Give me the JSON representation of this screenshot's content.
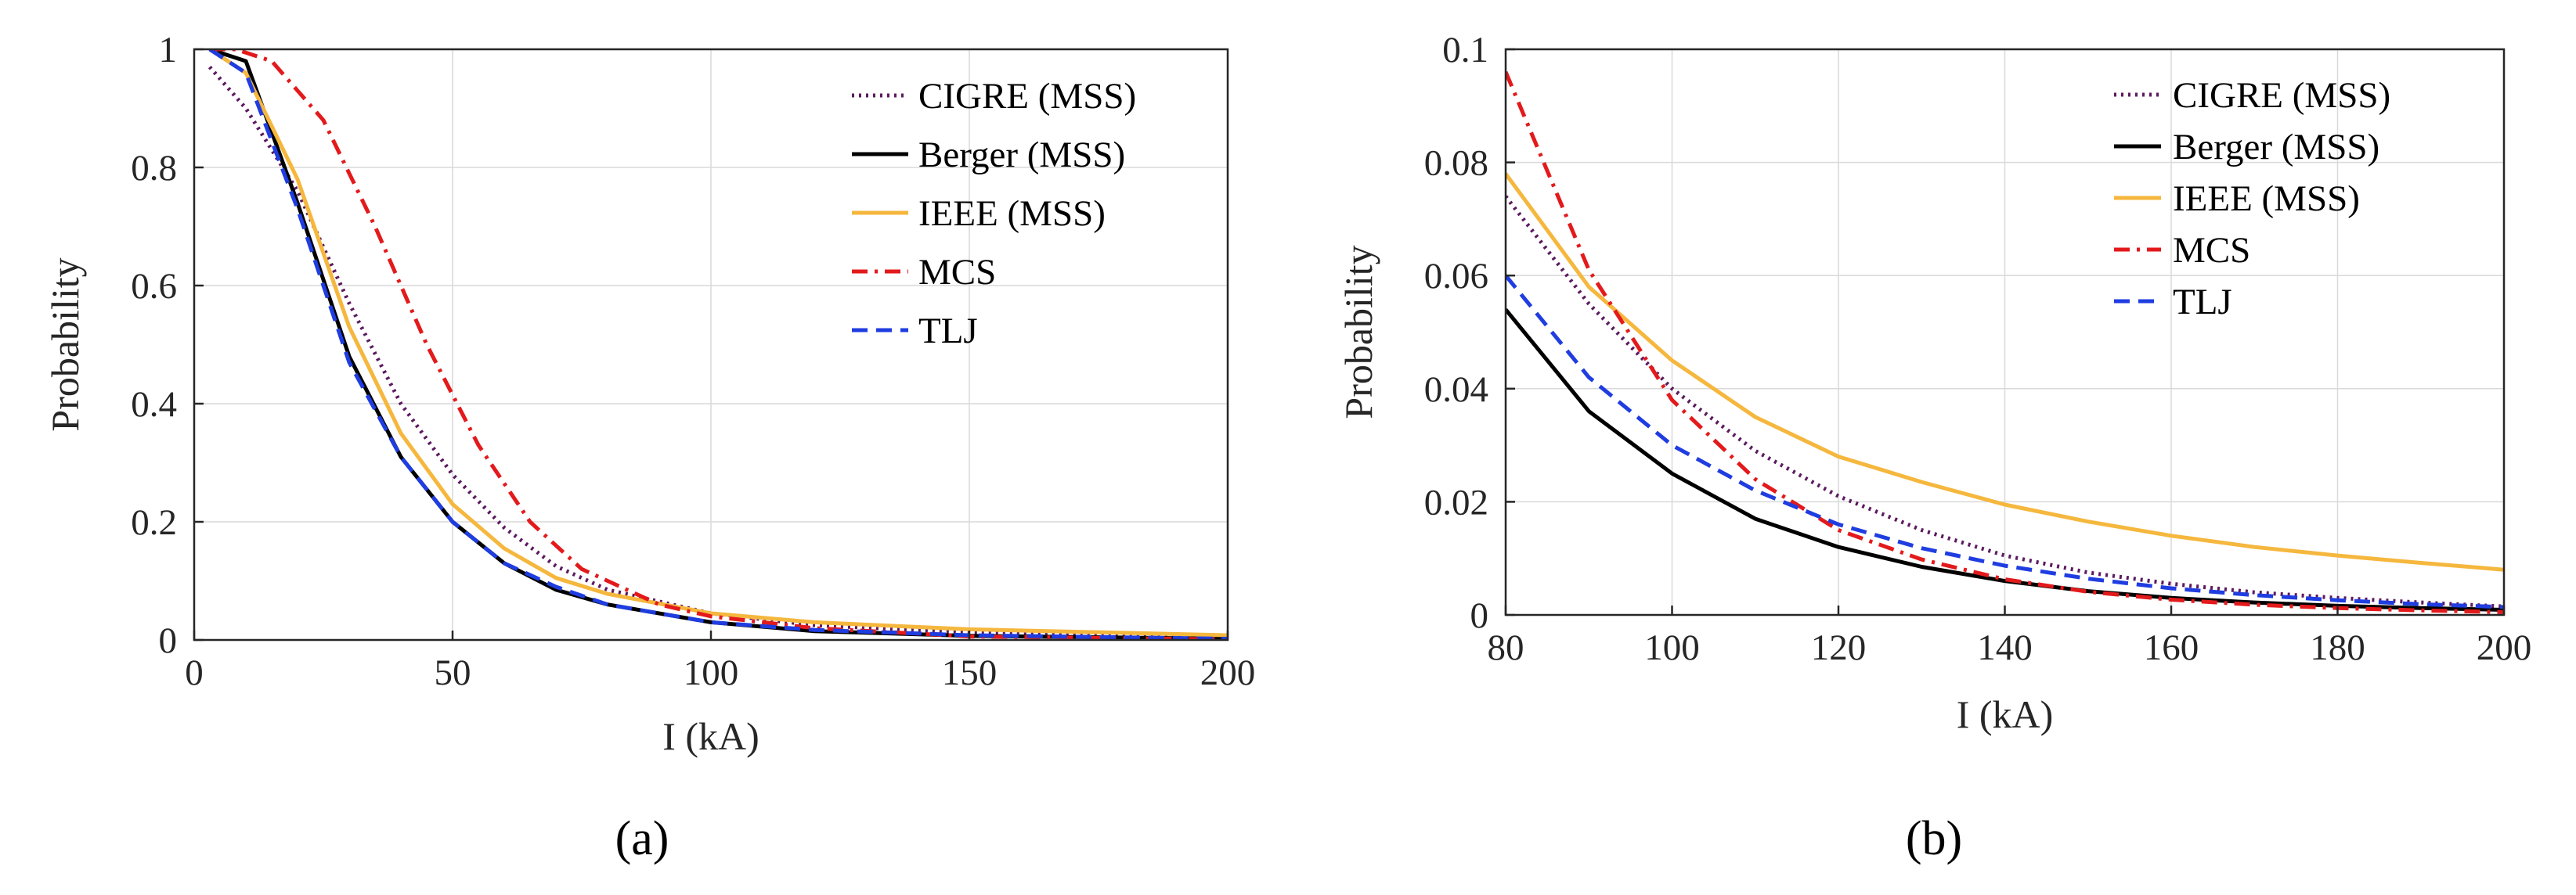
{
  "colors": {
    "cigre": "#5b1a5f",
    "berger": "#000000",
    "ieee": "#f5b73d",
    "mcs": "#e31a1c",
    "tlj": "#1f3de0",
    "grid": "#d9d9d9",
    "axis": "#262626"
  },
  "chart_data": [
    {
      "type": "line",
      "panel_label": "(a)",
      "xlabel": "I (kA)",
      "ylabel": "Probability",
      "xlim": [
        0,
        200
      ],
      "ylim": [
        0,
        1
      ],
      "xticks": [
        0,
        50,
        100,
        150,
        200
      ],
      "yticks": [
        0,
        0.2,
        0.4,
        0.6,
        0.8,
        1
      ],
      "xtick_labels": [
        "0",
        "50",
        "100",
        "150",
        "200"
      ],
      "ytick_labels": [
        "0",
        "0.2",
        "0.4",
        "0.6",
        "0.8",
        "1"
      ],
      "grid": true,
      "legend_position": "top-right",
      "series": [
        {
          "name": "CIGRE (MSS)",
          "style": "dotted",
          "color_key": "cigre",
          "x": [
            3,
            10,
            20,
            30,
            40,
            50,
            60,
            70,
            80,
            100,
            120,
            150,
            200
          ],
          "y": [
            0.97,
            0.9,
            0.76,
            0.57,
            0.4,
            0.28,
            0.19,
            0.125,
            0.085,
            0.045,
            0.025,
            0.012,
            0.003
          ]
        },
        {
          "name": "Berger (MSS)",
          "style": "solid",
          "color_key": "berger",
          "x": [
            3,
            10,
            20,
            30,
            40,
            50,
            60,
            70,
            80,
            100,
            120,
            150,
            200
          ],
          "y": [
            1.0,
            0.98,
            0.74,
            0.48,
            0.31,
            0.2,
            0.13,
            0.085,
            0.06,
            0.03,
            0.015,
            0.007,
            0.002
          ]
        },
        {
          "name": "IEEE (MSS)",
          "style": "solid",
          "color_key": "ieee",
          "x": [
            3,
            10,
            20,
            30,
            40,
            50,
            60,
            70,
            80,
            100,
            120,
            150,
            200
          ],
          "y": [
            1.0,
            0.96,
            0.78,
            0.53,
            0.35,
            0.23,
            0.155,
            0.105,
            0.078,
            0.045,
            0.03,
            0.018,
            0.008
          ]
        },
        {
          "name": "MCS",
          "style": "dashdot",
          "color_key": "mcs",
          "x": [
            3,
            8,
            15,
            25,
            35,
            45,
            55,
            65,
            75,
            90,
            100,
            120,
            150,
            200
          ],
          "y": [
            1.0,
            1.0,
            0.98,
            0.88,
            0.7,
            0.5,
            0.33,
            0.2,
            0.12,
            0.06,
            0.04,
            0.02,
            0.006,
            0.001
          ]
        },
        {
          "name": "TLJ",
          "style": "dashed",
          "color_key": "tlj",
          "x": [
            3,
            10,
            20,
            30,
            40,
            50,
            60,
            70,
            80,
            100,
            120,
            150,
            200
          ],
          "y": [
            1.0,
            0.96,
            0.73,
            0.47,
            0.31,
            0.2,
            0.13,
            0.09,
            0.06,
            0.03,
            0.017,
            0.008,
            0.002
          ]
        }
      ]
    },
    {
      "type": "line",
      "panel_label": "(b)",
      "xlabel": "I (kA)",
      "ylabel": "Probability",
      "xlim": [
        80,
        200
      ],
      "ylim": [
        0,
        0.1
      ],
      "xticks": [
        80,
        100,
        120,
        140,
        160,
        180,
        200
      ],
      "yticks": [
        0,
        0.02,
        0.04,
        0.06,
        0.08,
        0.1
      ],
      "xtick_labels": [
        "80",
        "100",
        "120",
        "140",
        "160",
        "180",
        "200"
      ],
      "ytick_labels": [
        "0",
        "0.02",
        "0.04",
        "0.06",
        "0.08",
        "0.1"
      ],
      "grid": true,
      "legend_position": "top-right",
      "series": [
        {
          "name": "CIGRE (MSS)",
          "style": "dotted",
          "color_key": "cigre",
          "x": [
            80,
            90,
            100,
            110,
            120,
            130,
            140,
            150,
            160,
            170,
            180,
            190,
            200
          ],
          "y": [
            0.074,
            0.055,
            0.04,
            0.029,
            0.021,
            0.015,
            0.0105,
            0.0075,
            0.0055,
            0.004,
            0.003,
            0.0022,
            0.0015
          ]
        },
        {
          "name": "Berger (MSS)",
          "style": "solid",
          "color_key": "berger",
          "x": [
            80,
            90,
            100,
            110,
            120,
            130,
            140,
            150,
            160,
            170,
            180,
            190,
            200
          ],
          "y": [
            0.054,
            0.036,
            0.025,
            0.017,
            0.012,
            0.0085,
            0.006,
            0.0042,
            0.003,
            0.0022,
            0.0016,
            0.0012,
            0.0009
          ]
        },
        {
          "name": "IEEE (MSS)",
          "style": "solid",
          "color_key": "ieee",
          "x": [
            80,
            90,
            100,
            110,
            120,
            130,
            140,
            150,
            160,
            170,
            180,
            190,
            200
          ],
          "y": [
            0.078,
            0.058,
            0.045,
            0.035,
            0.028,
            0.0235,
            0.0195,
            0.0165,
            0.014,
            0.012,
            0.0105,
            0.0092,
            0.008
          ]
        },
        {
          "name": "MCS",
          "style": "dashdot",
          "color_key": "mcs",
          "x": [
            80,
            90,
            100,
            110,
            120,
            130,
            140,
            150,
            160,
            170,
            180,
            190,
            200
          ],
          "y": [
            0.096,
            0.061,
            0.038,
            0.024,
            0.015,
            0.0098,
            0.0063,
            0.0041,
            0.0027,
            0.0018,
            0.0012,
            0.0008,
            0.0005
          ]
        },
        {
          "name": "TLJ",
          "style": "dashed",
          "color_key": "tlj",
          "x": [
            80,
            90,
            100,
            110,
            120,
            130,
            140,
            150,
            160,
            170,
            180,
            190,
            200
          ],
          "y": [
            0.06,
            0.042,
            0.03,
            0.022,
            0.016,
            0.0118,
            0.0087,
            0.0064,
            0.0047,
            0.0035,
            0.0026,
            0.0019,
            0.0014
          ]
        }
      ]
    }
  ]
}
